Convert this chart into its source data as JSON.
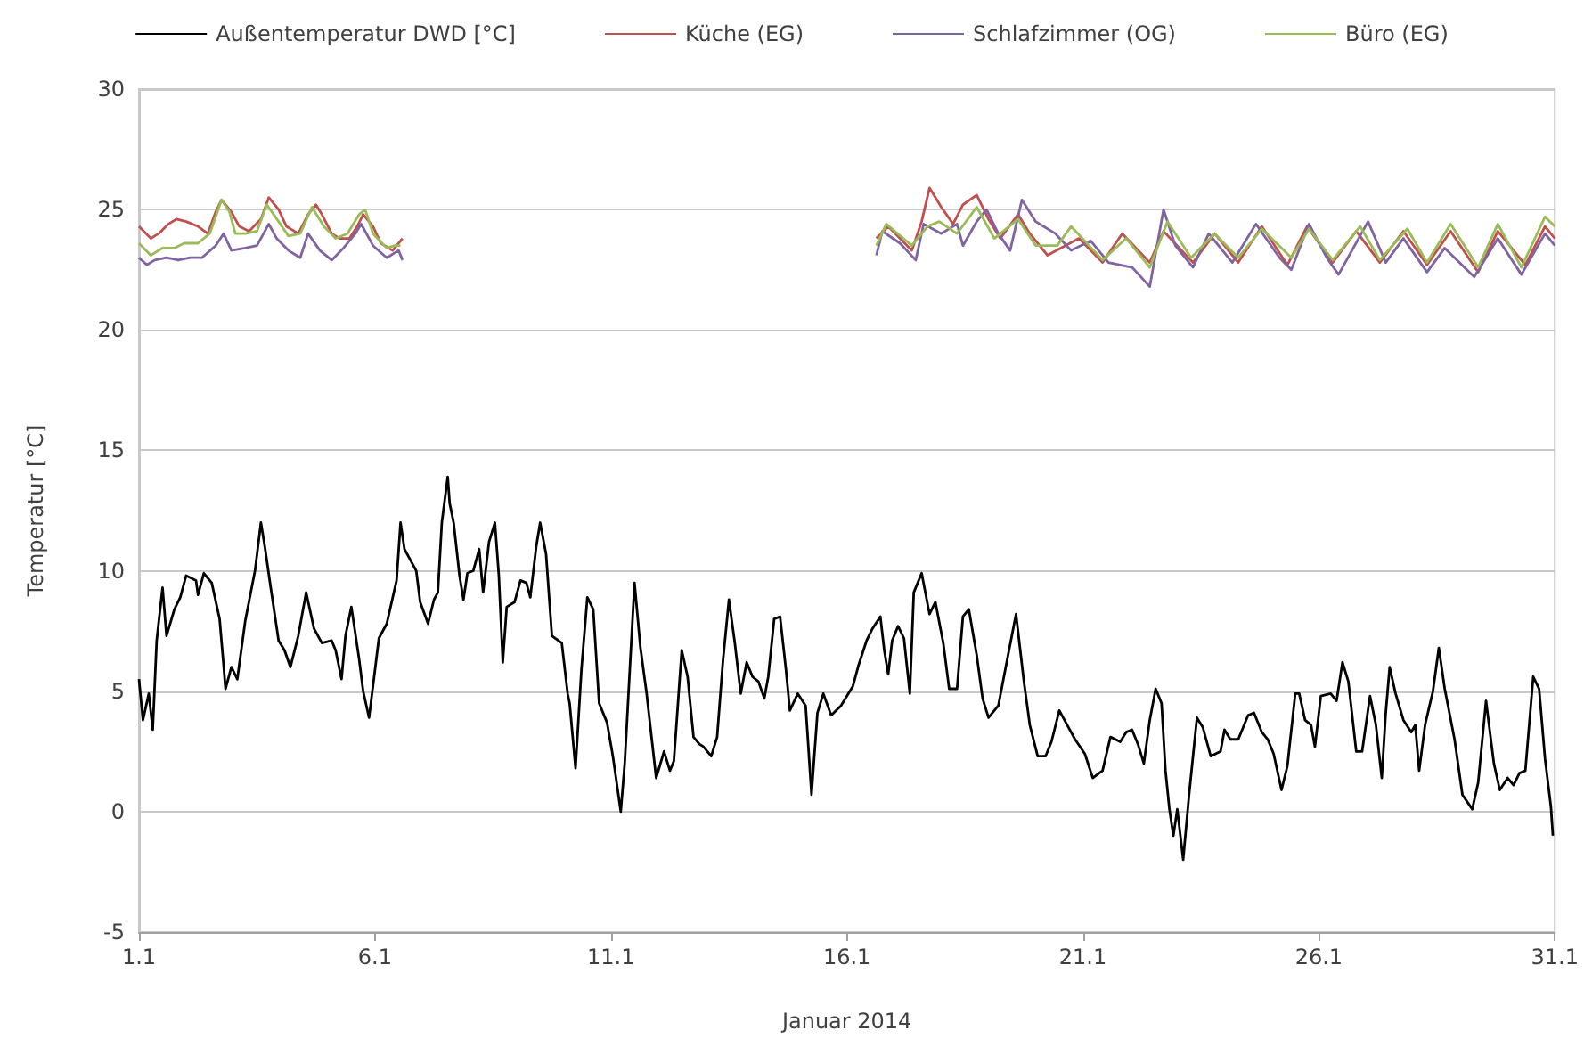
{
  "chart_data": {
    "type": "line",
    "xlabel": "Januar 2014",
    "ylabel": "Temperatur [°C]",
    "xlim": [
      "2014-01-01",
      "2014-01-31"
    ],
    "xticks": [
      {
        "value": "2014-01-01",
        "label": "1.1"
      },
      {
        "value": "2014-01-06",
        "label": "6.1"
      },
      {
        "value": "2014-01-11",
        "label": "11.1"
      },
      {
        "value": "2014-01-16",
        "label": "16.1"
      },
      {
        "value": "2014-01-21",
        "label": "21.1"
      },
      {
        "value": "2014-01-26",
        "label": "26.1"
      },
      {
        "value": "2014-01-31",
        "label": "31.1"
      }
    ],
    "ylim": [
      -5,
      30
    ],
    "yticks": [
      -5,
      0,
      5,
      10,
      15,
      20,
      25,
      30
    ],
    "grid": "y",
    "legend": "top",
    "marker": "none",
    "line_style": "solid",
    "series": [
      {
        "name": "Außentemperatur DWD [°C]",
        "color": "#000000",
        "x": [
          "2014-01-01T00:00",
          "2014-01-01T02:00",
          "2014-01-01T05:00",
          "2014-01-01T07:00",
          "2014-01-01T09:00",
          "2014-01-01T12:00",
          "2014-01-01T14:00",
          "2014-01-01T18:00",
          "2014-01-01T21:00",
          "2014-01-02T00:00",
          "2014-01-02T05:00",
          "2014-01-02T06:00",
          "2014-01-02T09:00",
          "2014-01-02T13:00",
          "2014-01-02T17:00",
          "2014-01-02T19:00",
          "2014-01-02T20:00",
          "2014-01-02T23:00",
          "2014-01-03T02:00",
          "2014-01-03T06:00",
          "2014-01-03T11:00",
          "2014-01-03T14:00",
          "2014-01-03T16:00",
          "2014-01-03T19:00",
          "2014-01-03T23:00",
          "2014-01-04T02:00",
          "2014-01-04T05:00",
          "2014-01-04T09:00",
          "2014-01-04T13:00",
          "2014-01-04T17:00",
          "2014-01-04T21:00",
          "2014-01-05T02:00",
          "2014-01-05T04:00",
          "2014-01-05T07:00",
          "2014-01-05T09:00",
          "2014-01-05T12:00",
          "2014-01-05T16:00",
          "2014-01-05T18:00",
          "2014-01-05T21:00",
          "2014-01-06T02:00",
          "2014-01-06T06:00",
          "2014-01-06T11:00",
          "2014-01-06T13:00",
          "2014-01-06T15:00",
          "2014-01-06T17:00",
          "2014-01-06T21:00",
          "2014-01-06T23:00",
          "2014-01-07T03:00",
          "2014-01-07T06:00",
          "2014-01-07T08:00",
          "2014-01-07T10:00",
          "2014-01-07T13:00",
          "2014-01-07T14:00",
          "2014-01-07T16:00",
          "2014-01-07T19:00",
          "2014-01-07T21:00",
          "2014-01-07T23:00",
          "2014-01-08T02:00",
          "2014-01-08T05:00",
          "2014-01-08T07:00",
          "2014-01-08T10:00",
          "2014-01-08T13:00",
          "2014-01-08T15:00",
          "2014-01-08T17:00",
          "2014-01-08T19:00",
          "2014-01-08T23:00",
          "2014-01-09T02:00",
          "2014-01-09T05:00",
          "2014-01-09T07:00",
          "2014-01-09T10:00",
          "2014-01-09T12:00",
          "2014-01-09T15:00",
          "2014-01-09T18:00",
          "2014-01-09T23:00",
          "2014-01-10T02:00",
          "2014-01-10T03:00",
          "2014-01-10T06:00",
          "2014-01-10T09:00",
          "2014-01-10T12:00",
          "2014-01-10T15:00",
          "2014-01-10T18:00",
          "2014-01-10T22:00",
          "2014-01-11T01:00",
          "2014-01-11T05:00",
          "2014-01-11T07:00",
          "2014-01-11T12:00",
          "2014-01-11T15:00",
          "2014-01-11T18:00",
          "2014-01-11T23:00",
          "2014-01-12T03:00",
          "2014-01-12T06:00",
          "2014-01-12T08:00",
          "2014-01-12T12:00",
          "2014-01-12T15:00",
          "2014-01-12T18:00",
          "2014-01-12T21:00",
          "2014-01-12T23:00",
          "2014-01-13T03:00",
          "2014-01-13T06:00",
          "2014-01-13T09:00",
          "2014-01-13T12:00",
          "2014-01-13T15:00",
          "2014-01-13T18:00",
          "2014-01-13T21:00",
          "2014-01-14T00:00",
          "2014-01-14T03:00",
          "2014-01-14T06:00",
          "2014-01-14T08:00",
          "2014-01-14T11:00",
          "2014-01-14T14:00",
          "2014-01-14T17:00",
          "2014-01-14T19:00",
          "2014-01-14T23:00",
          "2014-01-15T03:00",
          "2014-01-15T06:00",
          "2014-01-15T09:00",
          "2014-01-15T12:00",
          "2014-01-15T16:00",
          "2014-01-15T21:00",
          "2014-01-16T03:00",
          "2014-01-16T06:00",
          "2014-01-16T10:00",
          "2014-01-16T13:00",
          "2014-01-16T17:00",
          "2014-01-16T19:00",
          "2014-01-16T21:00",
          "2014-01-16T23:00",
          "2014-01-17T02:00",
          "2014-01-17T05:00",
          "2014-01-17T08:00",
          "2014-01-17T10:00",
          "2014-01-17T14:00",
          "2014-01-17T18:00",
          "2014-01-17T21:00",
          "2014-01-18T01:00",
          "2014-01-18T04:00",
          "2014-01-18T08:00",
          "2014-01-18T11:00",
          "2014-01-18T14:00",
          "2014-01-18T18:00",
          "2014-01-18T21:00",
          "2014-01-19T00:00",
          "2014-01-19T05:00",
          "2014-01-19T09:00",
          "2014-01-19T14:00",
          "2014-01-19T18:00",
          "2014-01-19T21:00",
          "2014-01-20T01:00",
          "2014-01-20T05:00",
          "2014-01-20T08:00",
          "2014-01-20T12:00",
          "2014-01-20T16:00",
          "2014-01-20T20:00",
          "2014-01-21T01:00",
          "2014-01-21T05:00",
          "2014-01-21T10:00",
          "2014-01-21T14:00",
          "2014-01-21T19:00",
          "2014-01-21T22:00",
          "2014-01-22T01:00",
          "2014-01-22T04:00",
          "2014-01-22T07:00",
          "2014-01-22T10:00",
          "2014-01-22T13:00",
          "2014-01-22T16:00",
          "2014-01-22T18:00",
          "2014-01-22T20:00",
          "2014-01-22T22:00",
          "2014-01-23T00:00",
          "2014-01-23T03:00",
          "2014-01-23T06:00",
          "2014-01-23T10:00",
          "2014-01-23T13:00",
          "2014-01-23T17:00",
          "2014-01-23T22:00",
          "2014-01-24T00:00",
          "2014-01-24T03:00",
          "2014-01-24T07:00",
          "2014-01-24T12:00",
          "2014-01-24T15:00",
          "2014-01-24T19:00",
          "2014-01-24T22:00",
          "2014-01-25T01:00",
          "2014-01-25T05:00",
          "2014-01-25T08:00",
          "2014-01-25T12:00",
          "2014-01-25T14:00",
          "2014-01-25T17:00",
          "2014-01-25T20:00",
          "2014-01-25T22:00",
          "2014-01-26T01:00",
          "2014-01-26T06:00",
          "2014-01-26T09:00",
          "2014-01-26T12:00",
          "2014-01-26T15:00",
          "2014-01-26T19:00",
          "2014-01-26T22:00",
          "2014-01-27T02:00",
          "2014-01-27T05:00",
          "2014-01-27T08:00",
          "2014-01-27T10:00",
          "2014-01-27T12:00",
          "2014-01-27T15:00",
          "2014-01-27T19:00",
          "2014-01-27T23:00",
          "2014-01-28T01:00",
          "2014-01-28T03:00",
          "2014-01-28T06:00",
          "2014-01-28T08:00",
          "2014-01-28T10:00",
          "2014-01-28T13:00",
          "2014-01-28T16:00",
          "2014-01-28T21:00",
          "2014-01-29T01:00",
          "2014-01-29T06:00",
          "2014-01-29T09:00",
          "2014-01-29T13:00",
          "2014-01-29T17:00",
          "2014-01-29T20:00",
          "2014-01-30T00:00",
          "2014-01-30T03:00",
          "2014-01-30T06:00",
          "2014-01-30T09:00",
          "2014-01-30T13:00",
          "2014-01-30T16:00",
          "2014-01-30T19:00",
          "2014-01-30T22:00",
          "2014-01-30T23:00"
        ],
        "values": [
          5.5,
          3.8,
          4.9,
          3.4,
          7.1,
          9.3,
          7.3,
          8.4,
          8.9,
          9.8,
          9.6,
          9.0,
          9.9,
          9.5,
          8.0,
          6.1,
          5.1,
          6.0,
          5.5,
          7.9,
          10.0,
          12.0,
          11.0,
          9.3,
          7.1,
          6.7,
          6.0,
          7.3,
          9.1,
          7.6,
          7.0,
          7.1,
          6.7,
          5.5,
          7.3,
          8.5,
          6.3,
          5.0,
          3.9,
          7.2,
          7.8,
          9.6,
          12.0,
          10.9,
          10.6,
          10.0,
          8.7,
          7.8,
          8.8,
          9.1,
          12.0,
          13.9,
          12.8,
          12.0,
          9.8,
          8.8,
          9.9,
          10.0,
          10.9,
          9.1,
          11.2,
          12.0,
          9.8,
          6.2,
          8.5,
          8.7,
          9.6,
          9.5,
          8.9,
          11.0,
          12.0,
          10.7,
          7.3,
          7.0,
          4.9,
          4.5,
          1.8,
          5.9,
          8.9,
          8.4,
          4.5,
          3.7,
          2.3,
          0.0,
          2.0,
          9.5,
          6.8,
          5.0,
          1.4,
          2.5,
          1.7,
          2.1,
          6.7,
          5.6,
          3.1,
          2.8,
          2.7,
          2.3,
          3.1,
          6.3,
          8.8,
          7.0,
          4.9,
          6.2,
          5.6,
          5.4,
          4.7,
          5.6,
          8.0,
          8.1,
          5.9,
          4.2,
          4.9,
          4.4,
          0.7,
          4.1,
          4.9,
          4.0,
          4.4,
          5.2,
          6.1,
          7.1,
          7.6,
          8.1,
          6.7,
          5.7,
          7.1,
          7.7,
          7.2,
          4.9,
          9.1,
          9.9,
          8.2,
          8.7,
          7.0,
          5.1,
          5.1,
          8.1,
          8.4,
          6.5,
          4.7,
          3.9,
          4.4,
          6.1,
          8.2,
          5.4,
          3.6,
          2.3,
          2.3,
          2.9,
          4.2,
          3.6,
          3.0,
          2.4,
          1.4,
          1.7,
          3.1,
          2.9,
          3.3,
          3.4,
          2.8,
          2.0,
          3.8,
          5.1,
          4.5,
          1.7,
          0.1,
          -1.0,
          0.1,
          -2.0,
          0.7,
          3.9,
          3.5,
          2.3,
          2.5,
          3.4,
          3.0,
          3.0,
          4.0,
          4.1,
          3.3,
          3.0,
          2.4,
          0.9,
          1.9,
          4.9,
          4.9,
          3.8,
          3.6,
          2.7,
          4.8,
          4.9,
          4.6,
          6.2,
          5.4,
          2.5,
          2.5,
          4.8,
          3.6,
          1.4,
          4.1,
          6.0,
          4.9,
          3.8,
          3.3,
          3.6,
          1.7,
          3.6,
          4.3,
          5.0,
          6.8,
          5.1,
          3.0,
          0.7,
          0.1,
          1.2,
          4.6,
          2.0,
          0.9,
          1.4,
          1.1,
          1.6,
          1.7,
          5.6,
          5.1,
          2.2,
          0.2,
          -1.0
        ]
      },
      {
        "name": "Küche (EG)",
        "color": "#c0504d",
        "x": [
          "2014-01-01T00:00",
          "2014-01-01T06:00",
          "2014-01-01T10:00",
          "2014-01-01T15:00",
          "2014-01-01T19:00",
          "2014-01-02T00:00",
          "2014-01-02T06:00",
          "2014-01-02T11:00",
          "2014-01-02T15:00",
          "2014-01-02T18:00",
          "2014-01-02T23:00",
          "2014-01-03T03:00",
          "2014-01-03T08:00",
          "2014-01-03T14:00",
          "2014-01-03T18:00",
          "2014-01-03T23:00",
          "2014-01-04T03:00",
          "2014-01-04T09:00",
          "2014-01-04T14:00",
          "2014-01-04T18:00",
          "2014-01-04T21:00",
          "2014-01-05T02:00",
          "2014-01-05T06:00",
          "2014-01-05T11:00",
          "2014-01-05T15:00",
          "2014-01-05T18:00",
          "2014-01-05T23:00",
          "2014-01-06T03:00",
          "2014-01-06T09:00",
          "2014-01-06T14:00",
          "2014-01-11T00:00",
          "2014-01-16T15:00",
          "2014-01-16T21:00",
          "2014-01-17T09:00",
          "2014-01-17T14:00",
          "2014-01-17T18:00",
          "2014-01-18T00:00",
          "2014-01-18T06:00",
          "2014-01-18T11:00",
          "2014-01-18T18:00",
          "2014-01-19T00:00",
          "2014-01-19T06:00",
          "2014-01-19T15:00",
          "2014-01-19T21:00",
          "2014-01-20T06:00",
          "2014-01-20T22:00",
          "2014-01-21T10:00",
          "2014-01-21T20:00",
          "2014-01-22T10:00",
          "2014-01-22T17:00",
          "2014-01-23T08:00",
          "2014-01-23T19:00",
          "2014-01-24T07:00",
          "2014-01-24T19:00",
          "2014-01-25T08:00",
          "2014-01-25T18:00",
          "2014-01-26T07:00",
          "2014-01-26T19:00",
          "2014-01-27T07:00",
          "2014-01-27T19:00",
          "2014-01-28T07:00",
          "2014-01-28T19:00",
          "2014-01-29T09:00",
          "2014-01-29T19:00",
          "2014-01-30T09:00",
          "2014-01-30T19:00",
          "2014-01-31T00:00"
        ],
        "values": [
          24.3,
          23.8,
          24.0,
          24.4,
          24.6,
          24.5,
          24.3,
          24.0,
          24.9,
          25.4,
          24.9,
          24.3,
          24.1,
          24.6,
          25.5,
          25.0,
          24.3,
          24.0,
          24.8,
          25.2,
          24.8,
          24.0,
          23.8,
          23.8,
          24.3,
          24.8,
          24.3,
          23.6,
          23.3,
          23.8,
          null,
          23.8,
          24.3,
          23.3,
          24.5,
          25.9,
          25.1,
          24.4,
          25.2,
          25.6,
          24.6,
          23.8,
          24.8,
          24.0,
          23.1,
          23.8,
          22.8,
          24.0,
          22.8,
          24.1,
          22.8,
          24.0,
          22.8,
          24.3,
          22.7,
          24.3,
          22.8,
          24.1,
          22.8,
          24.1,
          22.7,
          24.1,
          22.4,
          24.1,
          22.7,
          24.3,
          23.8
        ]
      },
      {
        "name": "Schlafzimmer (OG)",
        "color": "#8064a2",
        "x": [
          "2014-01-01T00:00",
          "2014-01-01T04:00",
          "2014-01-01T08:00",
          "2014-01-01T14:00",
          "2014-01-01T20:00",
          "2014-01-02T02:00",
          "2014-01-02T08:00",
          "2014-01-02T15:00",
          "2014-01-02T19:00",
          "2014-01-02T23:00",
          "2014-01-03T06:00",
          "2014-01-03T12:00",
          "2014-01-03T18:00",
          "2014-01-03T22:00",
          "2014-01-04T04:00",
          "2014-01-04T10:00",
          "2014-01-04T14:00",
          "2014-01-04T20:00",
          "2014-01-05T02:00",
          "2014-01-05T08:00",
          "2014-01-05T14:00",
          "2014-01-05T17:00",
          "2014-01-05T23:00",
          "2014-01-06T06:00",
          "2014-01-06T12:00",
          "2014-01-06T14:00",
          "2014-01-11T00:00",
          "2014-01-16T15:00",
          "2014-01-16T18:00",
          "2014-01-17T03:00",
          "2014-01-17T11:00",
          "2014-01-17T15:00",
          "2014-01-18T00:00",
          "2014-01-18T08:00",
          "2014-01-18T11:00",
          "2014-01-18T18:00",
          "2014-01-18T23:00",
          "2014-01-19T05:00",
          "2014-01-19T11:00",
          "2014-01-19T17:00",
          "2014-01-20T00:00",
          "2014-01-20T10:00",
          "2014-01-20T18:00",
          "2014-01-21T04:00",
          "2014-01-21T13:00",
          "2014-01-22T01:00",
          "2014-01-22T10:00",
          "2014-01-22T17:00",
          "2014-01-22T23:00",
          "2014-01-23T08:00",
          "2014-01-23T16:00",
          "2014-01-24T04:00",
          "2014-01-24T16:00",
          "2014-01-25T04:00",
          "2014-01-25T10:00",
          "2014-01-25T19:00",
          "2014-01-26T04:00",
          "2014-01-26T10:00",
          "2014-01-27T01:00",
          "2014-01-27T10:00",
          "2014-01-27T19:00",
          "2014-01-28T07:00",
          "2014-01-28T16:00",
          "2014-01-29T07:00",
          "2014-01-29T19:00",
          "2014-01-30T07:00",
          "2014-01-30T19:00",
          "2014-01-31T00:00"
        ],
        "values": [
          23.0,
          22.7,
          22.9,
          23.0,
          22.9,
          23.0,
          23.0,
          23.5,
          24.0,
          23.3,
          23.4,
          23.5,
          24.4,
          23.8,
          23.3,
          23.0,
          24.0,
          23.3,
          22.9,
          23.4,
          24.0,
          24.4,
          23.5,
          23.0,
          23.3,
          22.9,
          null,
          23.1,
          24.1,
          23.6,
          22.9,
          24.4,
          24.0,
          24.4,
          23.5,
          24.5,
          25.0,
          24.0,
          23.3,
          25.4,
          24.5,
          24.0,
          23.3,
          23.7,
          22.8,
          22.6,
          21.8,
          25.0,
          23.5,
          22.6,
          24.0,
          22.8,
          24.4,
          23.0,
          22.5,
          24.4,
          23.0,
          22.3,
          24.5,
          22.8,
          23.8,
          22.4,
          23.4,
          22.2,
          23.8,
          22.3,
          24.0,
          23.5
        ]
      },
      {
        "name": "Büro (EG)",
        "color": "#9bbb59",
        "x": [
          "2014-01-01T00:00",
          "2014-01-01T06:00",
          "2014-01-01T12:00",
          "2014-01-01T18:00",
          "2014-01-01T23:00",
          "2014-01-02T06:00",
          "2014-01-02T12:00",
          "2014-01-02T18:00",
          "2014-01-02T22:00",
          "2014-01-03T01:00",
          "2014-01-03T06:00",
          "2014-01-03T12:00",
          "2014-01-03T17:00",
          "2014-01-03T23:00",
          "2014-01-04T04:00",
          "2014-01-04T10:00",
          "2014-01-04T16:00",
          "2014-01-04T22:00",
          "2014-01-05T04:00",
          "2014-01-05T10:00",
          "2014-01-05T16:00",
          "2014-01-05T19:00",
          "2014-01-05T23:00",
          "2014-01-06T06:00",
          "2014-01-06T10:00",
          "2014-01-06T13:00",
          "2014-01-11T00:00",
          "2014-01-16T15:00",
          "2014-01-16T20:00",
          "2014-01-17T09:00",
          "2014-01-17T17:00",
          "2014-01-17T23:00",
          "2014-01-18T08:00",
          "2014-01-18T18:00",
          "2014-01-19T03:00",
          "2014-01-19T15:00",
          "2014-01-20T00:00",
          "2014-01-20T11:00",
          "2014-01-20T18:00",
          "2014-01-21T10:00",
          "2014-01-21T22:00",
          "2014-01-22T10:00",
          "2014-01-22T19:00",
          "2014-01-23T07:00",
          "2014-01-23T19:00",
          "2014-01-24T07:00",
          "2014-01-24T19:00",
          "2014-01-25T10:00",
          "2014-01-25T19:00",
          "2014-01-26T07:00",
          "2014-01-26T21:00",
          "2014-01-27T07:00",
          "2014-01-27T21:00",
          "2014-01-28T07:00",
          "2014-01-28T19:00",
          "2014-01-29T09:00",
          "2014-01-29T19:00",
          "2014-01-30T07:00",
          "2014-01-30T19:00",
          "2014-01-31T00:00"
        ],
        "values": [
          23.6,
          23.1,
          23.4,
          23.4,
          23.6,
          23.6,
          24.0,
          25.4,
          24.9,
          24.0,
          24.0,
          24.1,
          25.2,
          24.5,
          23.9,
          24.0,
          25.1,
          24.3,
          23.8,
          24.0,
          24.8,
          25.0,
          24.0,
          23.4,
          23.5,
          23.5,
          null,
          23.5,
          24.4,
          23.5,
          24.3,
          24.5,
          24.0,
          25.1,
          23.8,
          24.6,
          23.5,
          23.5,
          24.3,
          22.9,
          23.8,
          22.6,
          24.5,
          23.0,
          24.0,
          23.0,
          24.2,
          23.0,
          24.2,
          22.9,
          24.3,
          22.9,
          24.2,
          22.8,
          24.4,
          22.6,
          24.4,
          22.6,
          24.7,
          24.3
        ]
      }
    ]
  }
}
